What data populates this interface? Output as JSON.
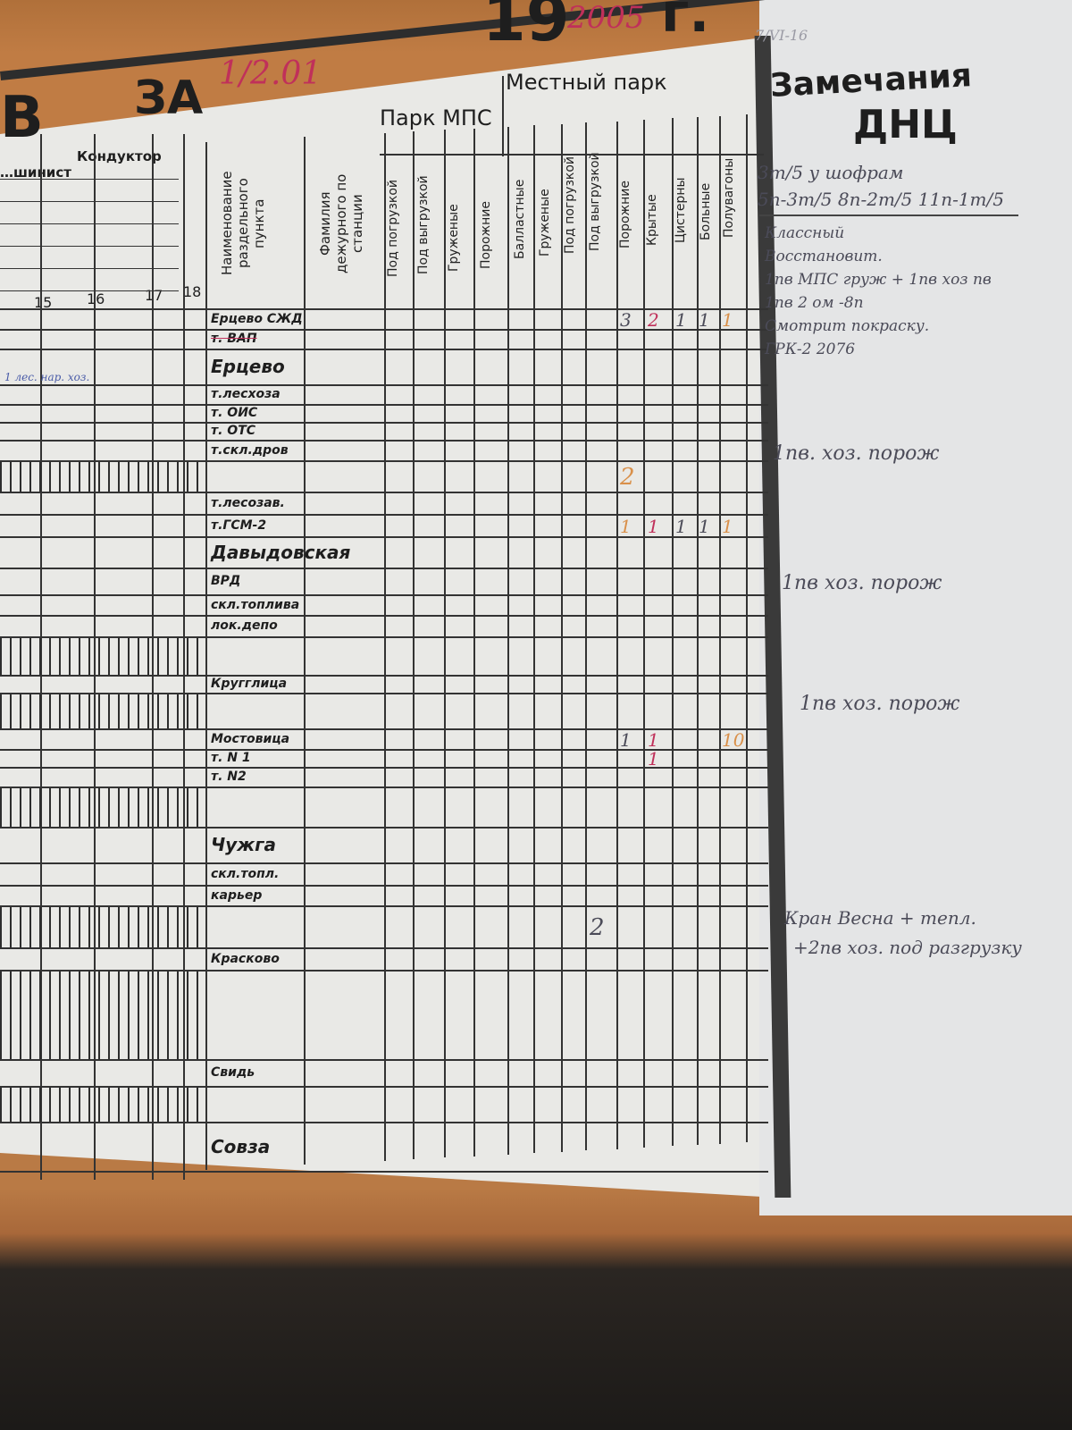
{
  "header": {
    "letter": "В",
    "za": "ЗА",
    "date_hand": "1/2.01",
    "year_print": "19",
    "year_hand": "2005",
    "year_suffix": "г."
  },
  "crew": {
    "col1": "…шинист",
    "col2": "Кондуктор",
    "hours": [
      "15",
      "16",
      "17",
      "18"
    ]
  },
  "columns": {
    "station": "Наименование раздельного пункта",
    "duty": "Фамилия дежурного по станции",
    "mps_group": "Парк МПС",
    "mps": [
      "Под погрузкой",
      "Под выгрузкой",
      "Груженые",
      "Порожние"
    ],
    "local_group": "Местный парк",
    "local": [
      "Балластные",
      "Груженые",
      "Под погрузкой",
      "Под выгрузкой",
      "Порожние",
      "Крытые",
      "Цистерны",
      "Больные",
      "Полувагоны"
    ]
  },
  "rows": [
    {
      "name": "Ерцево СЖД",
      "vals": {
        "4": "3",
        "5": "2",
        "6": "1",
        "7": "1",
        "8": "1"
      }
    },
    {
      "name": "т. ВАП",
      "struck": true
    },
    {
      "name": "Ерцево"
    },
    {
      "name": "т.лесхоза"
    },
    {
      "name": "т. ОИС"
    },
    {
      "name": "т. ОТС"
    },
    {
      "name": "т.скл.дров"
    },
    {
      "name": "",
      "hatched": true,
      "vals": {
        "4": "2"
      }
    },
    {
      "name": "т.лесозав."
    },
    {
      "name": "т.ГСМ-2",
      "vals": {
        "4": "1",
        "5": "1",
        "6": "1",
        "7": "1",
        "8": "1"
      }
    },
    {
      "name": "Давыдовская"
    },
    {
      "name": "ВРД"
    },
    {
      "name": "скл.топлива"
    },
    {
      "name": "лок.депо"
    },
    {
      "name": "",
      "hatched": true
    },
    {
      "name": "Кругглица"
    },
    {
      "name": "",
      "hatched": true
    },
    {
      "name": "Мостовица",
      "vals": {
        "4": "1",
        "5": "1",
        "8": "10"
      }
    },
    {
      "name": "т. N 1",
      "vals": {
        "5": "1"
      }
    },
    {
      "name": "т. N2"
    },
    {
      "name": "",
      "hatched": true
    },
    {
      "name": "Чужга"
    },
    {
      "name": "скл.топл."
    },
    {
      "name": "карьер"
    },
    {
      "name": "",
      "hatched": true,
      "vals": {
        "3": "2"
      }
    },
    {
      "name": "Красково"
    },
    {
      "name": "",
      "hatched": true
    },
    {
      "name": "Свидь"
    },
    {
      "name": "",
      "hatched": true
    },
    {
      "name": "Совза"
    }
  ],
  "left_note": "1 лес. нар. хоз.",
  "remarks": {
    "title1": "Замечания",
    "title2": "ДНЦ",
    "corner": "7/VI-16",
    "lines": [
      "3т/5 у шофрам",
      "5п-3т/5 8п-2т/5 11п-1т/5",
      "Классный",
      "Восстановит.",
      "1пв МПС груж + 1пв хоз пв",
      "1пв 2 ом -8п",
      "Смотрит покраску.",
      "ГРК-2 2076"
    ],
    "note1": "1пв. хоз. порож",
    "note2": "1пв хоз. порож",
    "note3": "1пв хоз. порож",
    "note4a": "Кран Весна + тепл.",
    "note4b": "+2пв хоз. под разгрузку"
  },
  "colors": {
    "ink_red": "#c0305a",
    "ink_orange": "#d9904a",
    "ink_blue": "#4a5ca8",
    "ink_pencil": "#4b4b58"
  }
}
